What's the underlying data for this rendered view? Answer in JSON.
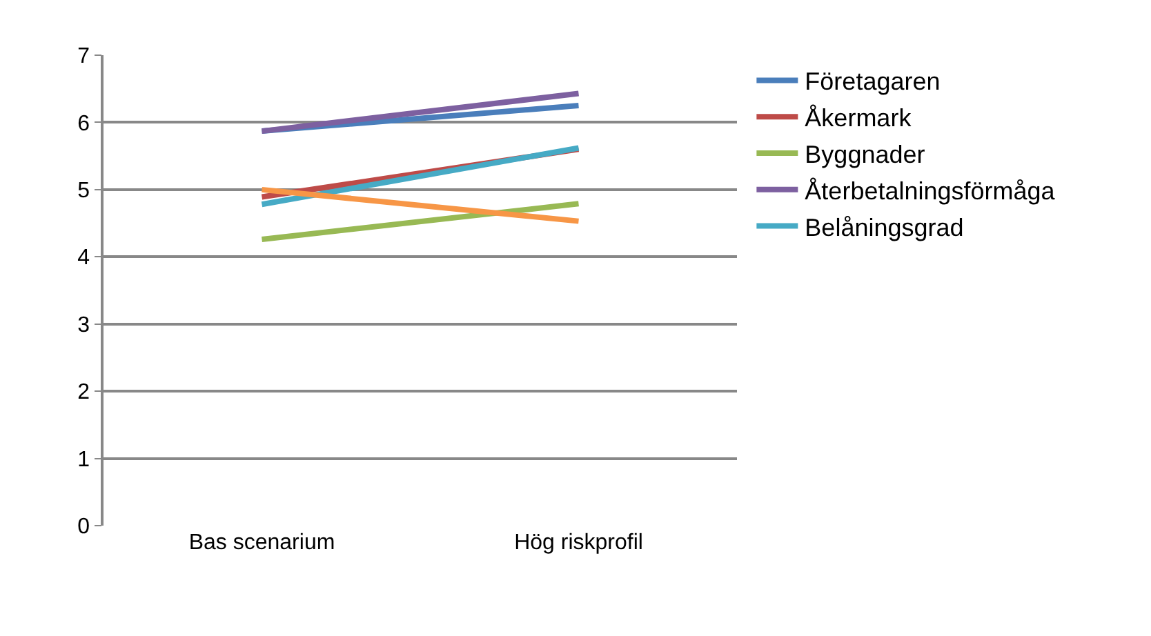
{
  "chart_data": {
    "type": "line",
    "categories": [
      "Bas scenarium",
      "Hög riskprofil"
    ],
    "series": [
      {
        "name": "Företagaren",
        "color": "#4a7ebb",
        "values": [
          5.87,
          6.25
        ]
      },
      {
        "name": "Åkermark",
        "color": "#be4b48",
        "values": [
          4.89,
          5.6
        ]
      },
      {
        "name": "Byggnader",
        "color": "#98b954",
        "values": [
          4.26,
          4.79
        ]
      },
      {
        "name": "Återbetalningsförmåga",
        "color": "#7d60a0",
        "values": [
          5.87,
          6.43
        ]
      },
      {
        "name": "Belåningsgrad",
        "color": "#46aac5",
        "values": [
          4.78,
          5.62
        ]
      },
      {
        "color": "#f79646",
        "values": [
          5.0,
          4.53
        ]
      }
    ],
    "ylim": [
      0,
      7
    ],
    "yticks": [
      0,
      1,
      2,
      3,
      4,
      5,
      6,
      7
    ],
    "grid": "y",
    "legend": "right",
    "marker": "none",
    "line_style": "solid"
  }
}
